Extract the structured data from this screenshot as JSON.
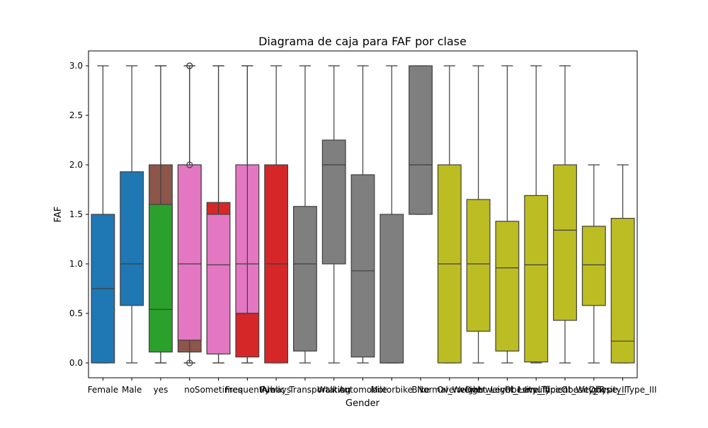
{
  "chart_data": {
    "type": "box",
    "title": "Diagrama de caja para FAF por clase",
    "xlabel": "Gender",
    "ylabel": "FAF",
    "ylim": [
      -0.15,
      3.15
    ],
    "yticks": [
      "0.0",
      "0.5",
      "1.0",
      "1.5",
      "2.0",
      "2.5",
      "3.0"
    ],
    "grid": false,
    "categories": [
      "Female",
      "Male",
      "yes",
      "no",
      "Sometimes",
      "Frequently",
      "Always",
      "Public_Transportation",
      "Walking",
      "Automobile",
      "Motorbike",
      "Bike",
      "Normal_Weight",
      "Overweight_Level_I",
      "Overweight_Level_II",
      "Obesity_Type_I",
      "Insufficient_Weight",
      "Obesity_Type_II",
      "Obesity_Type_III"
    ],
    "series_colors": {
      "Gender": "#1f77b4",
      "family_history_with_overweight": "#8c564b",
      "FAVC": "#2ca02c",
      "CAEC": "#e377c2",
      "CALC": "#d62728",
      "MTRANS": "#7f7f7f",
      "NObeyesdad": "#bcbd22"
    },
    "boxes": [
      {
        "cat": 0,
        "color": "#1f77b4",
        "whislo": 0.0,
        "q1": 0.0,
        "med": 0.75,
        "q3": 1.5,
        "whishi": 3.0,
        "fliers": []
      },
      {
        "cat": 1,
        "color": "#1f77b4",
        "whislo": 0.0,
        "q1": 0.58,
        "med": 1.0,
        "q3": 1.93,
        "whishi": 3.0,
        "fliers": []
      },
      {
        "cat": 2,
        "color": "#8c564b",
        "whislo": 0.0,
        "q1": 0.54,
        "med": 1.0,
        "q3": 2.0,
        "whishi": 3.0,
        "fliers": []
      },
      {
        "cat": 2,
        "color": "#2ca02c",
        "whislo": 0.0,
        "q1": 0.11,
        "med": 0.54,
        "q3": 1.6,
        "whishi": 3.0,
        "fliers": []
      },
      {
        "cat": 3,
        "color": "#8c564b",
        "whislo": 0.0,
        "q1": 0.11,
        "med": 1.0,
        "q3": 2.0,
        "whishi": 3.0,
        "fliers": [
          3.0
        ]
      },
      {
        "cat": 3,
        "color": "#e377c2",
        "whislo": 0.0,
        "q1": 0.23,
        "med": 1.0,
        "q3": 2.0,
        "whishi": 3.0,
        "fliers": [
          0.0,
          3.0,
          2.0
        ]
      },
      {
        "cat": 4,
        "color": "#d62728",
        "whislo": 0.0,
        "q1": 0.1,
        "med": 1.0,
        "q3": 1.62,
        "whishi": 3.0,
        "fliers": []
      },
      {
        "cat": 4,
        "color": "#e377c2",
        "whislo": 0.0,
        "q1": 0.09,
        "med": 0.99,
        "q3": 1.5,
        "whishi": 3.0,
        "fliers": []
      },
      {
        "cat": 5,
        "color": "#e377c2",
        "whislo": 0.0,
        "q1": 0.5,
        "med": 1.0,
        "q3": 2.0,
        "whishi": 3.0,
        "fliers": []
      },
      {
        "cat": 5,
        "color": "#d62728",
        "whislo": 0.0,
        "q1": 0.06,
        "med": 0.5,
        "q3": 0.5,
        "whishi": 3.0,
        "fliers": []
      },
      {
        "cat": 6,
        "color": "#d62728",
        "whislo": 0.0,
        "q1": 0.0,
        "med": 1.0,
        "q3": 2.0,
        "whishi": 3.0,
        "fliers": []
      },
      {
        "cat": 7,
        "color": "#7f7f7f",
        "whislo": 0.0,
        "q1": 0.12,
        "med": 1.0,
        "q3": 1.58,
        "whishi": 3.0,
        "fliers": []
      },
      {
        "cat": 8,
        "color": "#7f7f7f",
        "whislo": 0.0,
        "q1": 1.0,
        "med": 2.0,
        "q3": 2.25,
        "whishi": 3.0,
        "fliers": []
      },
      {
        "cat": 9,
        "color": "#7f7f7f",
        "whislo": 0.0,
        "q1": 0.06,
        "med": 0.93,
        "q3": 1.9,
        "whishi": 3.0,
        "fliers": []
      },
      {
        "cat": 10,
        "color": "#7f7f7f",
        "whislo": 0.0,
        "q1": 0.0,
        "med": 0.0,
        "q3": 1.5,
        "whishi": 3.0,
        "fliers": []
      },
      {
        "cat": 11,
        "color": "#7f7f7f",
        "whislo": 1.5,
        "q1": 1.5,
        "med": 2.0,
        "q3": 3.0,
        "whishi": 3.0,
        "fliers": []
      },
      {
        "cat": 12,
        "color": "#bcbd22",
        "whislo": 0.0,
        "q1": 0.0,
        "med": 1.0,
        "q3": 2.0,
        "whishi": 3.0,
        "fliers": []
      },
      {
        "cat": 13,
        "color": "#bcbd22",
        "whislo": 0.0,
        "q1": 0.32,
        "med": 1.0,
        "q3": 1.65,
        "whishi": 3.0,
        "fliers": []
      },
      {
        "cat": 14,
        "color": "#bcbd22",
        "whislo": 0.0,
        "q1": 0.12,
        "med": 0.96,
        "q3": 1.43,
        "whishi": 3.0,
        "fliers": []
      },
      {
        "cat": 15,
        "color": "#bcbd22",
        "whislo": 0.0,
        "q1": 0.01,
        "med": 0.99,
        "q3": 1.69,
        "whishi": 3.0,
        "fliers": []
      },
      {
        "cat": 16,
        "color": "#bcbd22",
        "whislo": 0.0,
        "q1": 0.43,
        "med": 1.34,
        "q3": 2.0,
        "whishi": 3.0,
        "fliers": []
      },
      {
        "cat": 17,
        "color": "#bcbd22",
        "whislo": 0.0,
        "q1": 0.58,
        "med": 0.99,
        "q3": 1.38,
        "whishi": 2.0,
        "fliers": []
      },
      {
        "cat": 18,
        "color": "#bcbd22",
        "whislo": 0.0,
        "q1": 0.0,
        "med": 0.22,
        "q3": 1.46,
        "whishi": 2.0,
        "fliers": []
      }
    ]
  }
}
